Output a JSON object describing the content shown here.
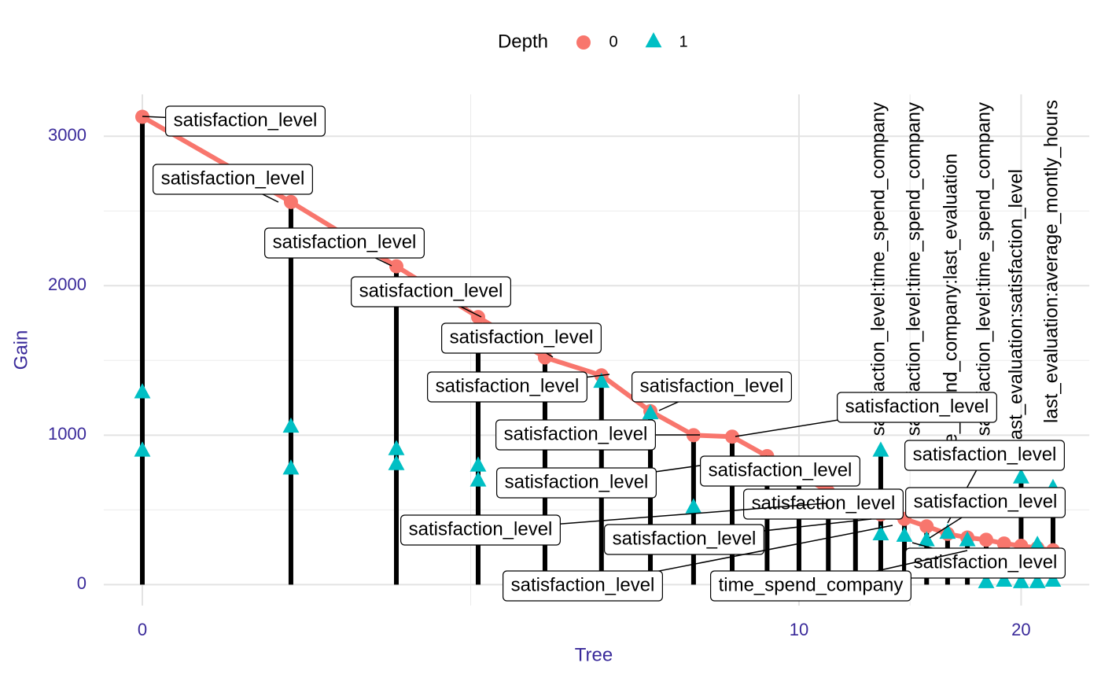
{
  "chart_data": {
    "type": "lollipop",
    "x_label": "Tree",
    "y_label": "Gain",
    "legend_title": "Depth",
    "legend_position": "top",
    "xlim": [
      -0.2,
      24.5
    ],
    "xticks": [
      0,
      10,
      20
    ],
    "ylim": [
      -140,
      3280
    ],
    "yticks": [
      0,
      1000,
      2000,
      3000
    ],
    "grid": true,
    "series": [
      {
        "name": "0",
        "color": "#f8766d",
        "marker": "circle",
        "x": [
          0,
          1,
          2,
          3,
          4,
          5,
          6,
          7,
          8,
          9,
          10,
          11,
          12,
          13,
          14,
          15,
          16,
          17,
          18,
          19,
          20,
          21,
          22
        ],
        "values": [
          3130,
          2560,
          2130,
          1790,
          1520,
          1400,
          1160,
          1000,
          990,
          860,
          740,
          620,
          530,
          470,
          440,
          390,
          340,
          315,
          300,
          275,
          260,
          245,
          230
        ]
      },
      {
        "name": "1",
        "color": "#00bfc4",
        "marker": "triangle",
        "x": [
          0,
          0,
          1,
          1,
          2,
          2,
          3,
          3,
          5,
          6,
          7,
          13,
          13,
          14,
          15,
          16,
          17,
          18,
          19,
          20,
          20,
          21,
          21,
          22,
          22
        ],
        "values": [
          1290,
          900,
          1060,
          780,
          910,
          810,
          800,
          700,
          1360,
          1150,
          520,
          900,
          340,
          330,
          300,
          350,
          300,
          20,
          30,
          720,
          20,
          270,
          20,
          650,
          30
        ]
      }
    ],
    "annotations": [
      "satisfaction_level",
      "satisfaction_level",
      "satisfaction_level",
      "satisfaction_level",
      "satisfaction_level",
      "satisfaction_level",
      "satisfaction_level",
      "satisfaction_level",
      "satisfaction_level",
      "satisfaction_level",
      "satisfaction_level",
      "satisfaction_level",
      "satisfaction_level",
      "satisfaction_level",
      "satisfaction_level",
      "satisfaction_level",
      "satisfaction_level",
      "satisfaction_level",
      "time_spend_company"
    ],
    "rotated_annotations": [
      "satisfaction_level:time_spend_company",
      "satisfaction_level:time_spend_company",
      "time_spend_company:last_evaluation",
      "satisfaction_level:time_spend_company",
      "last_evaluation:satisfaction_level",
      "last_evaluation:average_montly_hours"
    ]
  }
}
